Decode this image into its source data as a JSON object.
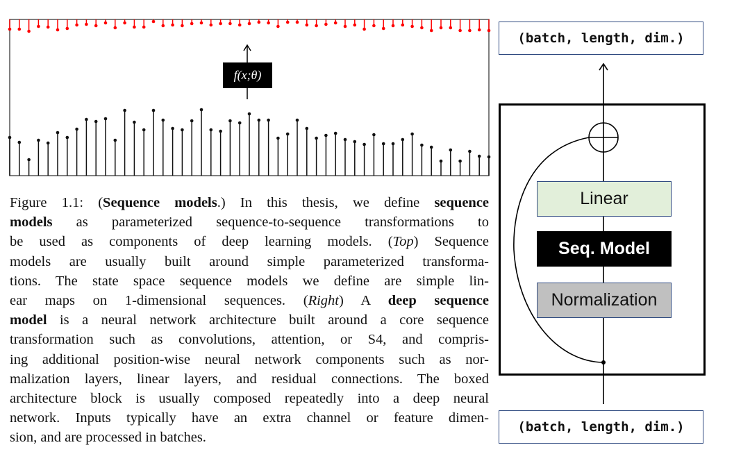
{
  "chart_data": {
    "type": "stem",
    "title": "",
    "xlabel": "",
    "ylabel": "",
    "grid": false,
    "annotation": "f(x;θ)",
    "colors": {
      "input": "#111111",
      "output": "#ff0000"
    },
    "input_values": [
      55,
      48,
      23,
      51,
      47,
      62,
      55,
      67,
      81,
      78,
      82,
      51,
      94,
      77,
      66,
      94,
      80,
      68,
      66,
      79,
      95,
      66,
      64,
      79,
      76,
      89,
      80,
      80,
      54,
      60,
      80,
      68,
      54,
      58,
      61,
      52,
      49,
      45,
      59,
      46,
      46,
      52,
      60,
      44,
      41,
      21,
      37,
      21,
      35,
      28,
      27
    ],
    "output_values": [
      -14,
      -14,
      -17,
      -10,
      -11,
      -15,
      -13,
      -8,
      -7,
      -9,
      -5,
      -12,
      -5,
      -11,
      -11,
      -3,
      -9,
      -8,
      -9,
      -6,
      -5,
      -8,
      -6,
      -6,
      -8,
      -6,
      -4,
      -5,
      -10,
      -4,
      -4,
      -8,
      -9,
      -7,
      -5,
      -10,
      -8,
      -14,
      -9,
      -13,
      -9,
      -8,
      -10,
      -12,
      -16,
      -12,
      -12,
      -16,
      -16,
      -15,
      -16
    ]
  },
  "caption": {
    "lines": [
      [
        {
          "t": "Figure 1.1: ("
        },
        {
          "t": "Sequence models",
          "s": "b"
        },
        {
          "t": ".) In this thesis, we define "
        },
        {
          "t": "sequence",
          "s": "b"
        }
      ],
      [
        {
          "t": "models",
          "s": "b"
        },
        {
          "t": " as parameterized sequence-to-sequence transformations to"
        }
      ],
      [
        {
          "t": "be used as components of deep learning models. ("
        },
        {
          "t": "Top",
          "s": "i"
        },
        {
          "t": ") Sequence"
        }
      ],
      [
        {
          "t": "models are usually built around simple parameterized transforma-"
        }
      ],
      [
        {
          "t": "tions. The state space sequence models we define are simple lin-"
        }
      ],
      [
        {
          "t": "ear maps on 1-dimensional sequences. ("
        },
        {
          "t": "Right",
          "s": "i"
        },
        {
          "t": ") A "
        },
        {
          "t": "deep sequence",
          "s": "b"
        }
      ],
      [
        {
          "t": "model",
          "s": "b"
        },
        {
          "t": " is a neural network architecture built around a core sequence"
        }
      ],
      [
        {
          "t": "transformation such as convolutions, attention, or S4, and compris-"
        }
      ],
      [
        {
          "t": "ing additional position-wise neural network components such as nor-"
        }
      ],
      [
        {
          "t": "malization layers, linear layers, and residual connections. The boxed"
        }
      ],
      [
        {
          "t": "architecture block is usually composed repeatedly into a deep neural"
        }
      ],
      [
        {
          "t": "network. Inputs typically have an extra channel or feature dimen-"
        }
      ],
      [
        {
          "t": "sion, and are processed in batches."
        }
      ]
    ]
  },
  "diagram": {
    "output_label": "(batch, length, dim.)",
    "input_label": "(batch, length, dim.)",
    "linear_label": "Linear",
    "seq_model_label": "Seq. Model",
    "norm_label": "Normalization",
    "colors": {
      "linear_fill": "#e2efda",
      "seq_fill": "#000000",
      "norm_fill": "#c0c0c0",
      "box_border": "#2f4a80"
    }
  }
}
